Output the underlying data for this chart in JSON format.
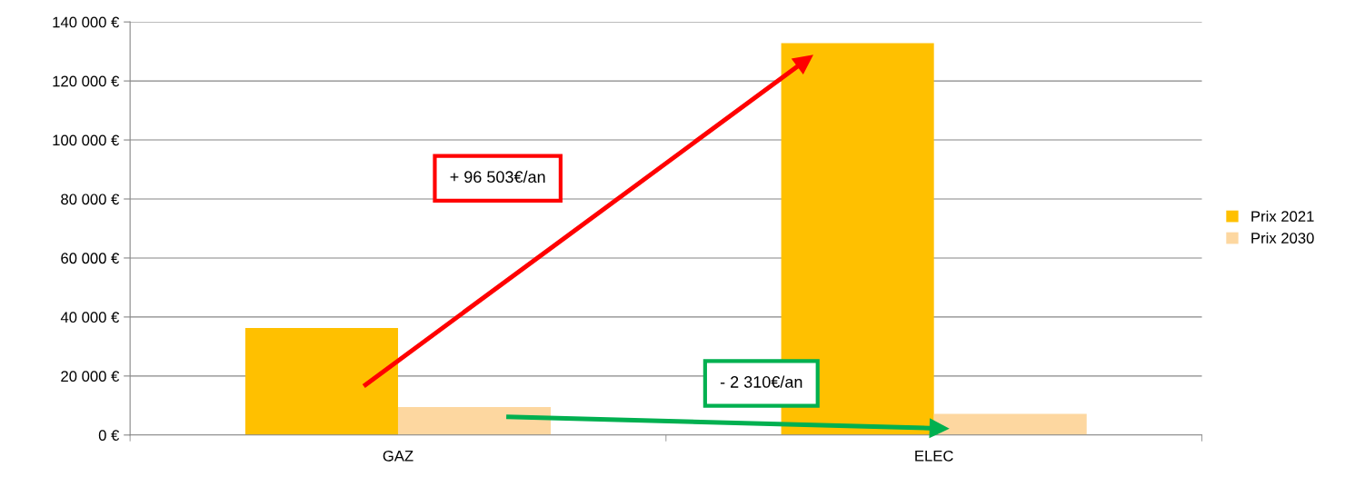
{
  "chart_data": {
    "type": "bar",
    "categories": [
      "GAZ",
      "ELEC"
    ],
    "series": [
      {
        "name": "Prix 2021",
        "color": "#ffc000",
        "values": [
          36300,
          132800
        ]
      },
      {
        "name": "Prix 2030",
        "color": "#fdd7a0",
        "values": [
          9500,
          7200
        ]
      }
    ],
    "ylim": [
      0,
      140000
    ],
    "yticks": [
      {
        "value": 0,
        "label": "0 €"
      },
      {
        "value": 20000,
        "label": "20 000 €"
      },
      {
        "value": 40000,
        "label": "40 000 €"
      },
      {
        "value": 60000,
        "label": "60 000 €"
      },
      {
        "value": 80000,
        "label": "80 000 €"
      },
      {
        "value": 100000,
        "label": "100 000 €"
      },
      {
        "value": 120000,
        "label": "120 000 €"
      },
      {
        "value": 140000,
        "label": "140 000 €"
      }
    ],
    "grid": "y",
    "legend": "right",
    "annotations": [
      "+ 96 503€/an",
      "- 2 310€/an"
    ]
  }
}
